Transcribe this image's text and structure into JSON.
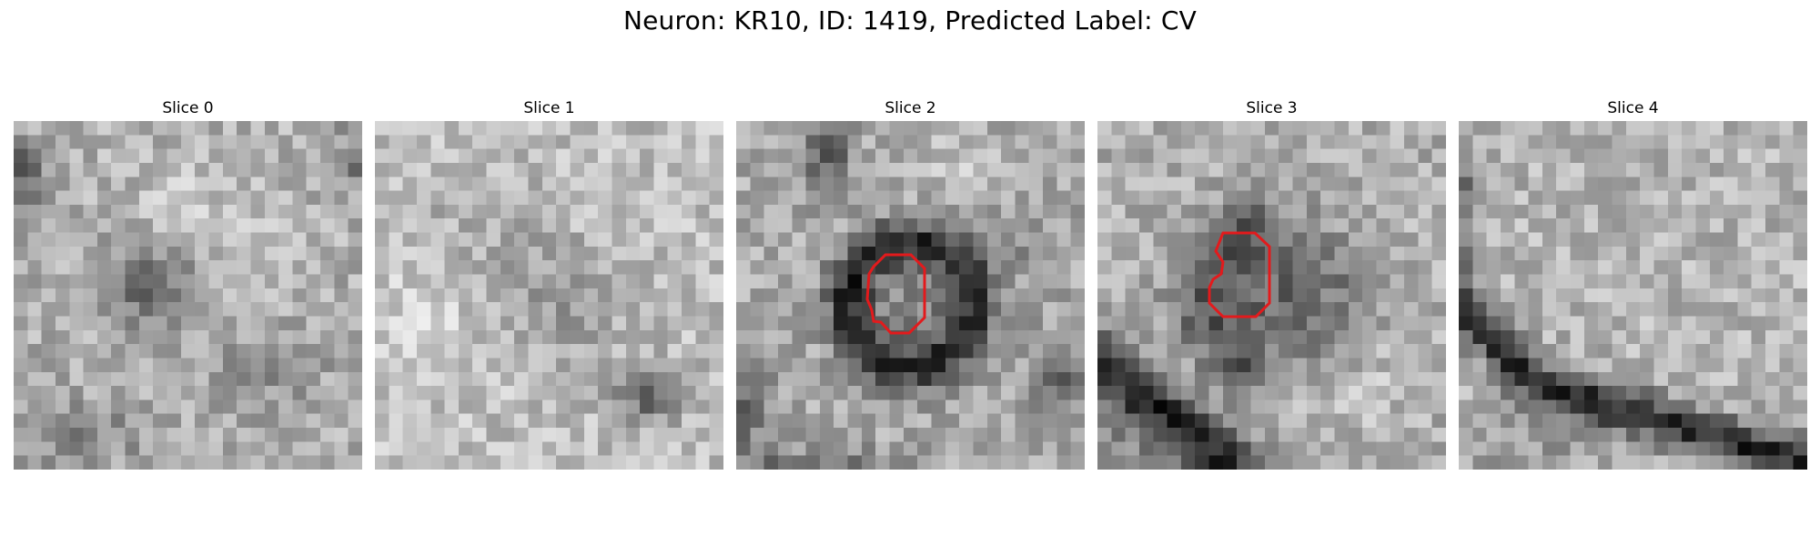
{
  "figure": {
    "title": "Neuron: KR10, ID: 1419, Predicted Label: CV"
  },
  "panels": [
    {
      "title": "Slice 0",
      "has_contour": false
    },
    {
      "title": "Slice 1",
      "has_contour": false
    },
    {
      "title": "Slice 2",
      "has_contour": true
    },
    {
      "title": "Slice 3",
      "has_contour": true
    },
    {
      "title": "Slice 4",
      "has_contour": false
    }
  ],
  "colors": {
    "contour": "#e31a1c",
    "colormap": "gray"
  }
}
